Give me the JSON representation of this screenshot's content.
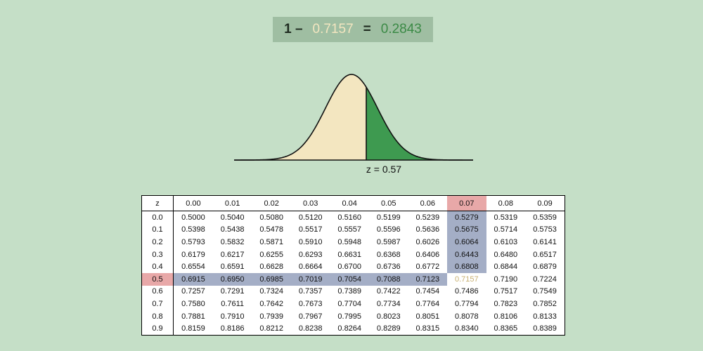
{
  "equation": {
    "left": "1 –",
    "cdf": "0.7157",
    "equals": "=",
    "result": "0.2843"
  },
  "curve_label": "z = 0.57",
  "table": {
    "header": [
      "z",
      "0.00",
      "0.01",
      "0.02",
      "0.03",
      "0.04",
      "0.05",
      "0.06",
      "0.07",
      "0.08",
      "0.09"
    ],
    "rows": [
      [
        "0.0",
        "0.5000",
        "0.5040",
        "0.5080",
        "0.5120",
        "0.5160",
        "0.5199",
        "0.5239",
        "0.5279",
        "0.5319",
        "0.5359"
      ],
      [
        "0.1",
        "0.5398",
        "0.5438",
        "0.5478",
        "0.5517",
        "0.5557",
        "0.5596",
        "0.5636",
        "0.5675",
        "0.5714",
        "0.5753"
      ],
      [
        "0.2",
        "0.5793",
        "0.5832",
        "0.5871",
        "0.5910",
        "0.5948",
        "0.5987",
        "0.6026",
        "0.6064",
        "0.6103",
        "0.6141"
      ],
      [
        "0.3",
        "0.6179",
        "0.6217",
        "0.6255",
        "0.6293",
        "0.6631",
        "0.6368",
        "0.6406",
        "0.6443",
        "0.6480",
        "0.6517"
      ],
      [
        "0.4",
        "0.6554",
        "0.6591",
        "0.6628",
        "0.6664",
        "0.6700",
        "0.6736",
        "0.6772",
        "0.6808",
        "0.6844",
        "0.6879"
      ],
      [
        "0.5",
        "0.6915",
        "0.6950",
        "0.6985",
        "0.7019",
        "0.7054",
        "0.7088",
        "0.7123",
        "0.7157",
        "0.7190",
        "0.7224"
      ],
      [
        "0.6",
        "0.7257",
        "0.7291",
        "0.7324",
        "0.7357",
        "0.7389",
        "0.7422",
        "0.7454",
        "0.7486",
        "0.7517",
        "0.7549"
      ],
      [
        "0.7",
        "0.7580",
        "0.7611",
        "0.7642",
        "0.7673",
        "0.7704",
        "0.7734",
        "0.7764",
        "0.7794",
        "0.7823",
        "0.7852"
      ],
      [
        "0.8",
        "0.7881",
        "0.7910",
        "0.7939",
        "0.7967",
        "0.7995",
        "0.8023",
        "0.8051",
        "0.8078",
        "0.8106",
        "0.8133"
      ],
      [
        "0.9",
        "0.8159",
        "0.8186",
        "0.8212",
        "0.8238",
        "0.8264",
        "0.8289",
        "0.8315",
        "0.8340",
        "0.8365",
        "0.8389"
      ]
    ]
  }
}
